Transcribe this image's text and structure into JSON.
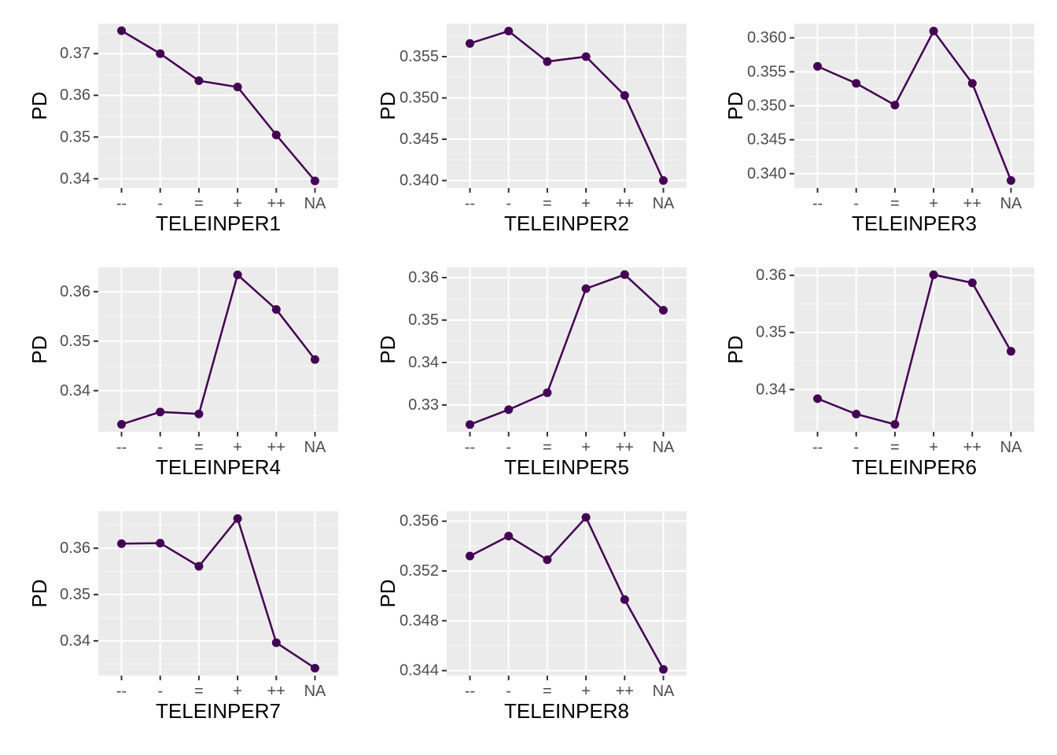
{
  "series_color": "#440154",
  "chart_data": [
    {
      "type": "line",
      "xlabel": "TELEINPER1",
      "ylabel": "PD",
      "categories": [
        "--",
        "-",
        "=",
        "+",
        "++",
        "NA"
      ],
      "values": [
        0.3755,
        0.37,
        0.3635,
        0.362,
        0.3505,
        0.3395
      ],
      "ylim": [
        0.3378,
        0.3772
      ],
      "yticks": [
        0.34,
        0.35,
        0.36,
        0.37
      ],
      "ytick_labels": [
        "0.34",
        "0.35",
        "0.36",
        "0.37"
      ]
    },
    {
      "type": "line",
      "xlabel": "TELEINPER2",
      "ylabel": "PD",
      "categories": [
        "--",
        "-",
        "=",
        "+",
        "++",
        "NA"
      ],
      "values": [
        0.3566,
        0.3581,
        0.3544,
        0.355,
        0.3503,
        0.34
      ],
      "ylim": [
        0.3391,
        0.359
      ],
      "yticks": [
        0.34,
        0.345,
        0.35,
        0.355
      ],
      "ytick_labels": [
        "0.340",
        "0.345",
        "0.350",
        "0.355"
      ]
    },
    {
      "type": "line",
      "xlabel": "TELEINPER3",
      "ylabel": "PD",
      "categories": [
        "--",
        "-",
        "=",
        "+",
        "++",
        "NA"
      ],
      "values": [
        0.3558,
        0.3533,
        0.3501,
        0.361,
        0.3533,
        0.339
      ],
      "ylim": [
        0.3379,
        0.3621
      ],
      "yticks": [
        0.34,
        0.345,
        0.35,
        0.355,
        0.36
      ],
      "ytick_labels": [
        "0.340",
        "0.345",
        "0.350",
        "0.355",
        "0.360"
      ]
    },
    {
      "type": "line",
      "xlabel": "TELEINPER4",
      "ylabel": "PD",
      "categories": [
        "--",
        "-",
        "=",
        "+",
        "++",
        "NA"
      ],
      "values": [
        0.3332,
        0.3357,
        0.3353,
        0.3634,
        0.3564,
        0.3463
      ],
      "ylim": [
        0.3317,
        0.3649
      ],
      "yticks": [
        0.34,
        0.35,
        0.36
      ],
      "ytick_labels": [
        "0.34",
        "0.35",
        "0.36"
      ]
    },
    {
      "type": "line",
      "xlabel": "TELEINPER5",
      "ylabel": "PD",
      "categories": [
        "--",
        "-",
        "=",
        "+",
        "++",
        "NA"
      ],
      "values": [
        0.3254,
        0.3289,
        0.3329,
        0.3574,
        0.3607,
        0.3523
      ],
      "ylim": [
        0.3237,
        0.3624
      ],
      "yticks": [
        0.33,
        0.34,
        0.35,
        0.36
      ],
      "ytick_labels": [
        "0.33",
        "0.34",
        "0.35",
        "0.36"
      ]
    },
    {
      "type": "line",
      "xlabel": "TELEINPER6",
      "ylabel": "PD",
      "categories": [
        "--",
        "-",
        "=",
        "+",
        "++",
        "NA"
      ],
      "values": [
        0.3384,
        0.3357,
        0.3339,
        0.3601,
        0.3587,
        0.3467
      ],
      "ylim": [
        0.3326,
        0.3614
      ],
      "yticks": [
        0.34,
        0.35,
        0.36
      ],
      "ytick_labels": [
        "0.34",
        "0.35",
        "0.36"
      ]
    },
    {
      "type": "line",
      "xlabel": "TELEINPER7",
      "ylabel": "PD",
      "categories": [
        "--",
        "-",
        "=",
        "+",
        "++",
        "NA"
      ],
      "values": [
        0.361,
        0.3611,
        0.3561,
        0.3664,
        0.3396,
        0.3341
      ],
      "ylim": [
        0.3325,
        0.368
      ],
      "yticks": [
        0.34,
        0.35,
        0.36
      ],
      "ytick_labels": [
        "0.34",
        "0.35",
        "0.36"
      ]
    },
    {
      "type": "line",
      "xlabel": "TELEINPER8",
      "ylabel": "PD",
      "categories": [
        "--",
        "-",
        "=",
        "+",
        "++",
        "NA"
      ],
      "values": [
        0.3532,
        0.3548,
        0.3529,
        0.3563,
        0.3497,
        0.3441
      ],
      "ylim": [
        0.3436,
        0.3568
      ],
      "yticks": [
        0.344,
        0.348,
        0.352,
        0.356
      ],
      "ytick_labels": [
        "0.344",
        "0.348",
        "0.352",
        "0.356"
      ]
    }
  ]
}
